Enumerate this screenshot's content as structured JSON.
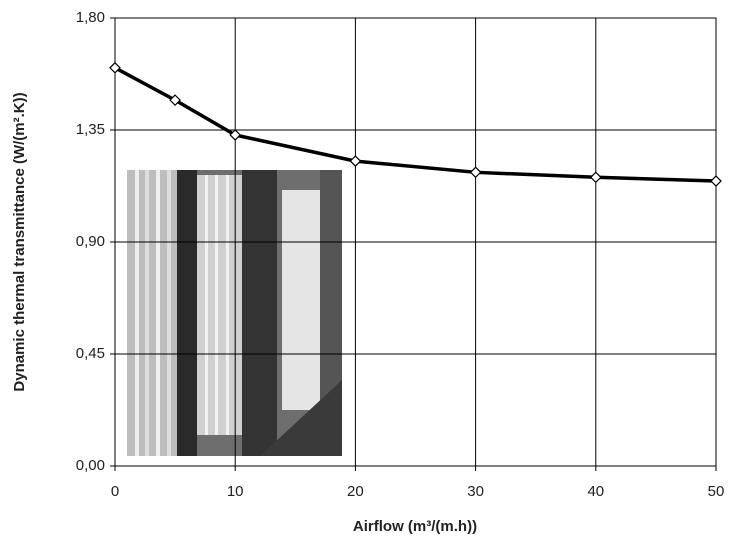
{
  "chart_data": {
    "type": "line",
    "x": [
      0,
      5,
      10,
      20,
      30,
      40,
      50
    ],
    "series": [
      {
        "color": "#000000",
        "values": [
          1.6,
          1.47,
          1.33,
          1.225,
          1.18,
          1.16,
          1.145
        ]
      }
    ],
    "xlim": [
      0,
      50
    ],
    "xticks": [
      0,
      10,
      20,
      30,
      40,
      50
    ],
    "ylim": [
      0,
      1.8
    ],
    "yticks": [
      {
        "value": 0,
        "label": "0,00"
      },
      {
        "value": 0.45,
        "label": "0,45"
      },
      {
        "value": 0.9,
        "label": "0,90"
      },
      {
        "value": 1.35,
        "label": "1,35"
      },
      {
        "value": 1.8,
        "label": "1,80"
      }
    ],
    "xlabel": "Airflow (m³/(m.h))",
    "ylabel": "Dynamic thermal transmittance (W/(m².K))",
    "grid": true
  }
}
